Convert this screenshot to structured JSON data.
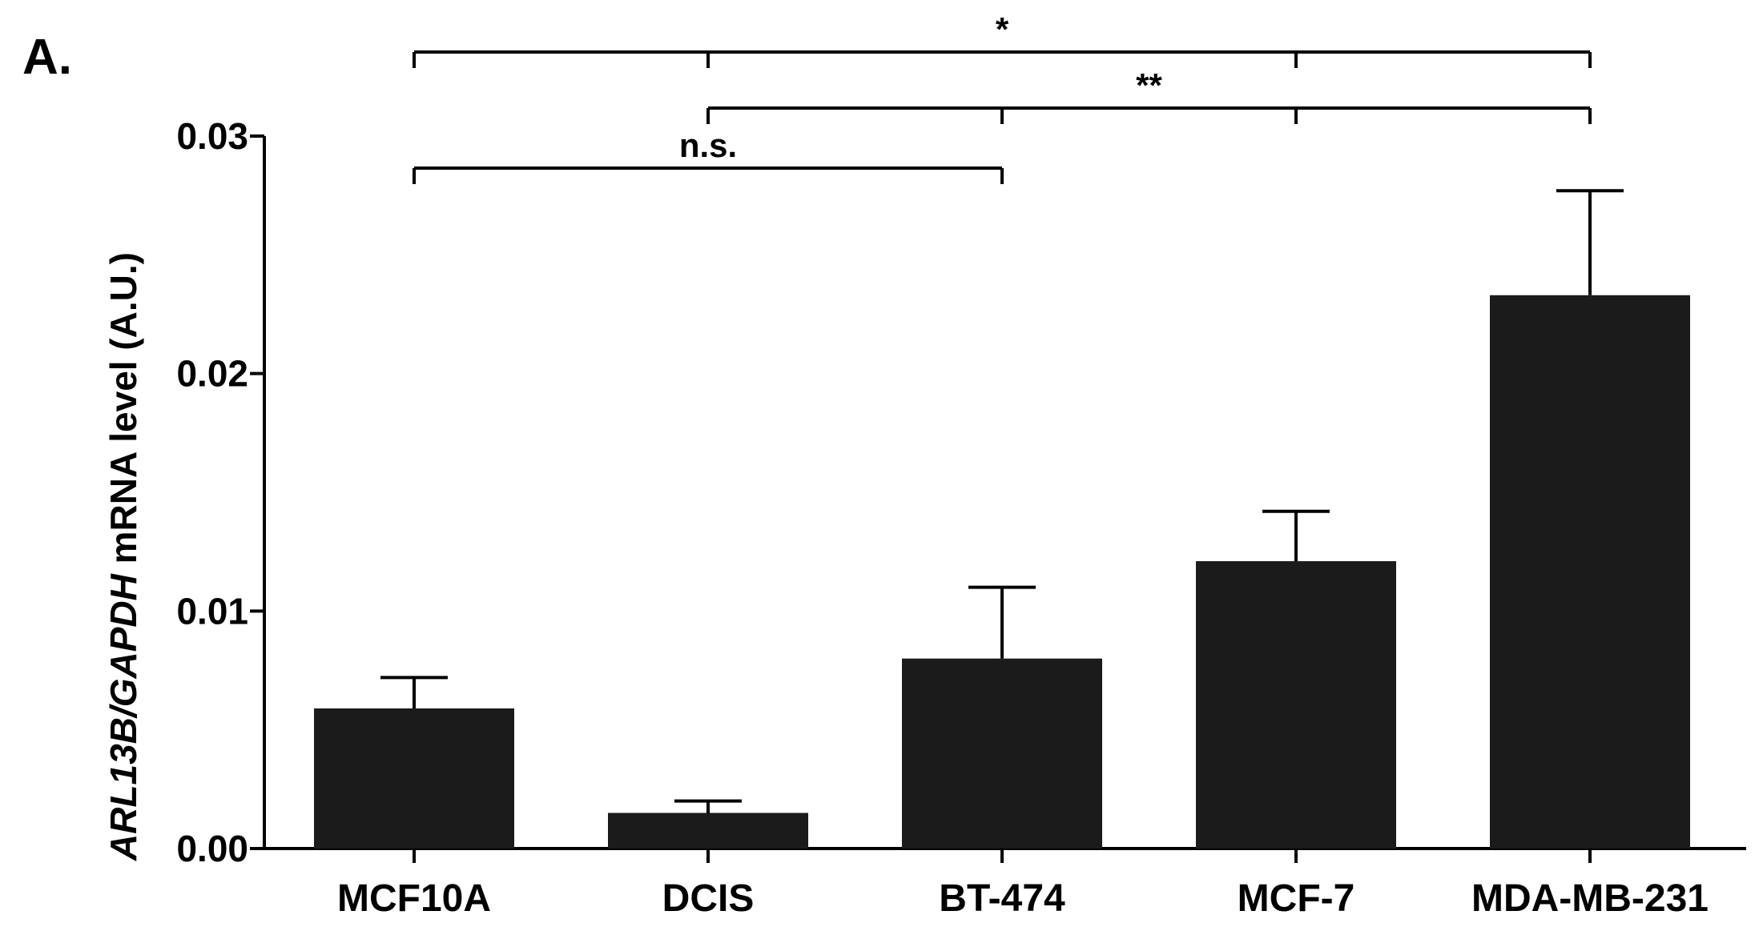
{
  "panel_label": "A.",
  "chart_data": {
    "type": "bar",
    "title": "",
    "xlabel": "",
    "ylabel_parts": [
      {
        "text": "ARL13B/GAPDH",
        "italic": true
      },
      {
        "text": " mRNA level (A.U.)",
        "italic": false
      }
    ],
    "categories": [
      "MCF10A",
      "DCIS",
      "BT-474",
      "MCF-7",
      "MDA-MB-231"
    ],
    "values": [
      0.0059,
      0.0015,
      0.008,
      0.0121,
      0.0233
    ],
    "errors": [
      0.0013,
      0.0005,
      0.003,
      0.0021,
      0.0044
    ],
    "ylim": [
      0,
      0.03
    ],
    "yticks": [
      0.0,
      0.01,
      0.02,
      0.03
    ],
    "ytick_labels": [
      "0.00",
      "0.01",
      "0.02",
      "0.03"
    ],
    "bar_color": "#1b1b1b",
    "significance": [
      {
        "label": "*",
        "from": 0,
        "to": 4,
        "mid_ticks": [
          1,
          3
        ],
        "level": 3
      },
      {
        "label": "**",
        "from": 1,
        "to": 4,
        "mid_ticks": [
          2,
          3
        ],
        "level": 2
      },
      {
        "label": "n.s.",
        "from": 0,
        "to": 2,
        "mid_ticks": [],
        "level": 1
      }
    ]
  }
}
